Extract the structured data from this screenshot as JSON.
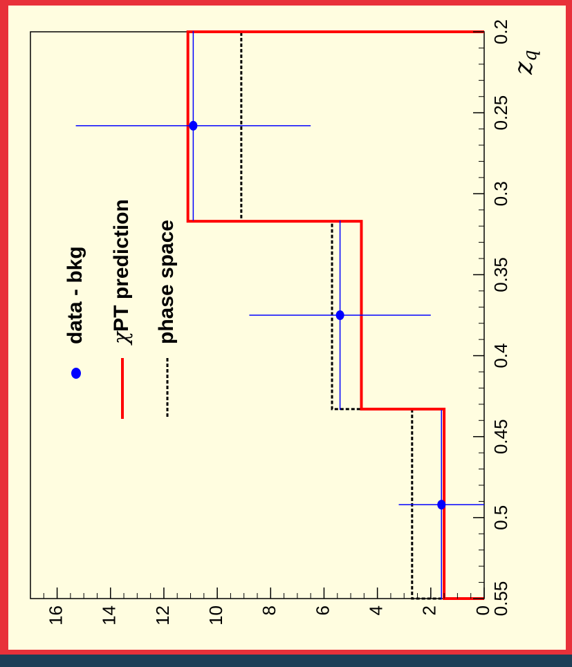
{
  "colors": {
    "background": "#1d3f57",
    "frame": "#e8313a",
    "panel": "#fffde0",
    "data": "#0000ff",
    "chipt": "#ff0000",
    "phase": "#000000"
  },
  "chart_data": {
    "type": "histogram",
    "orientation": "rotated-90-counterclockwise",
    "xlabel_main": "z",
    "xlabel_sub": "q",
    "ylabel": "",
    "xlim": [
      0.2,
      0.55
    ],
    "ylim": [
      0,
      17
    ],
    "x_tick_labels": [
      "0.2",
      "0.25",
      "0.3",
      "0.35",
      "0.4",
      "0.45",
      "0.5",
      "0.55"
    ],
    "x_tick_values": [
      0.2,
      0.25,
      0.3,
      0.35,
      0.4,
      0.45,
      0.5,
      0.55
    ],
    "y_tick_labels": [
      "0",
      "2",
      "4",
      "6",
      "8",
      "10",
      "12",
      "14",
      "16"
    ],
    "y_tick_values": [
      0,
      2,
      4,
      6,
      8,
      10,
      12,
      14,
      16
    ],
    "bin_edges": [
      0.2,
      0.317,
      0.433,
      0.55
    ],
    "legend": [
      {
        "key": "data",
        "label_main": "data - bkg",
        "label_prefix": "",
        "style": "marker"
      },
      {
        "key": "chipt",
        "label_main": "PT prediction",
        "label_prefix": "χ",
        "style": "solid"
      },
      {
        "key": "phase",
        "label_main": "phase space",
        "label_prefix": "",
        "style": "dashed"
      }
    ],
    "series": [
      {
        "key": "chipt",
        "name": "χPT prediction",
        "values": [
          11.1,
          4.6,
          1.5
        ]
      },
      {
        "key": "phase",
        "name": "phase space",
        "values": [
          9.1,
          5.7,
          2.7
        ]
      },
      {
        "key": "data",
        "name": "data - bkg",
        "x": [
          0.258,
          0.375,
          0.492
        ],
        "values": [
          10.9,
          5.4,
          1.6
        ],
        "xerr": [
          0.0585,
          0.0585,
          0.0585
        ],
        "yerr": [
          4.4,
          3.4,
          1.6
        ]
      }
    ]
  }
}
